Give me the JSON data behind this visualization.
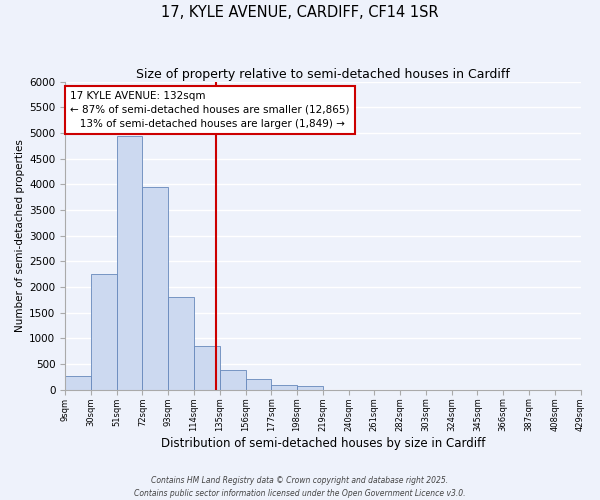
{
  "title": "17, KYLE AVENUE, CARDIFF, CF14 1SR",
  "subtitle": "Size of property relative to semi-detached houses in Cardiff",
  "xlabel": "Distribution of semi-detached houses by size in Cardiff",
  "ylabel": "Number of semi-detached properties",
  "bin_edges": [
    9,
    30,
    51,
    72,
    93,
    114,
    135,
    156,
    177,
    198,
    219,
    240,
    261,
    282,
    303,
    324,
    345,
    366,
    387,
    408,
    429
  ],
  "bin_counts": [
    270,
    2250,
    4950,
    3950,
    1800,
    850,
    390,
    210,
    100,
    70,
    0,
    0,
    0,
    0,
    0,
    0,
    0,
    0,
    0,
    0
  ],
  "bar_facecolor": "#ccd9f0",
  "bar_edgecolor": "#6688bb",
  "vline_x": 132,
  "vline_color": "#cc0000",
  "annotation_line1": "17 KYLE AVENUE: 132sqm",
  "annotation_line2": "← 87% of semi-detached houses are smaller (12,865)",
  "annotation_line3": "   13% of semi-detached houses are larger (1,849) →",
  "annotation_box_edgecolor": "#cc0000",
  "annotation_box_facecolor": "#ffffff",
  "ylim": [
    0,
    6000
  ],
  "yticks": [
    0,
    500,
    1000,
    1500,
    2000,
    2500,
    3000,
    3500,
    4000,
    4500,
    5000,
    5500,
    6000
  ],
  "tick_labels": [
    "9sqm",
    "30sqm",
    "51sqm",
    "72sqm",
    "93sqm",
    "114sqm",
    "135sqm",
    "156sqm",
    "177sqm",
    "198sqm",
    "219sqm",
    "240sqm",
    "261sqm",
    "282sqm",
    "303sqm",
    "324sqm",
    "345sqm",
    "366sqm",
    "387sqm",
    "408sqm",
    "429sqm"
  ],
  "background_color": "#eef2fb",
  "grid_color": "#ffffff",
  "footer_line1": "Contains HM Land Registry data © Crown copyright and database right 2025.",
  "footer_line2": "Contains public sector information licensed under the Open Government Licence v3.0.",
  "title_fontsize": 10.5,
  "subtitle_fontsize": 9
}
